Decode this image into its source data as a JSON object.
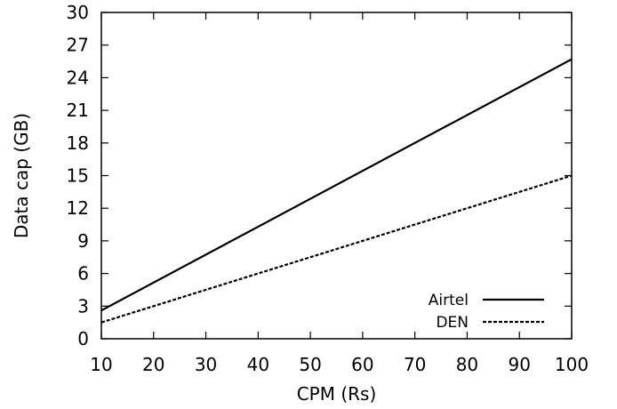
{
  "chart_data": {
    "type": "line",
    "title": "",
    "xlabel": "CPM (Rs)",
    "ylabel": "Data cap (GB)",
    "xlim": [
      10,
      100
    ],
    "ylim": [
      0,
      30
    ],
    "xticks": [
      10,
      20,
      30,
      40,
      50,
      60,
      70,
      80,
      90,
      100
    ],
    "yticks": [
      0,
      3,
      6,
      9,
      12,
      15,
      18,
      21,
      24,
      27,
      30
    ],
    "grid": false,
    "legend_position": "bottom-right",
    "series": [
      {
        "name": "Airtel",
        "style": "solid",
        "color": "#000000",
        "x": [
          10,
          100
        ],
        "y": [
          2.6,
          25.7
        ]
      },
      {
        "name": "DEN",
        "style": "dashed",
        "color": "#000000",
        "x": [
          10,
          100
        ],
        "y": [
          1.5,
          15.0
        ]
      }
    ]
  }
}
